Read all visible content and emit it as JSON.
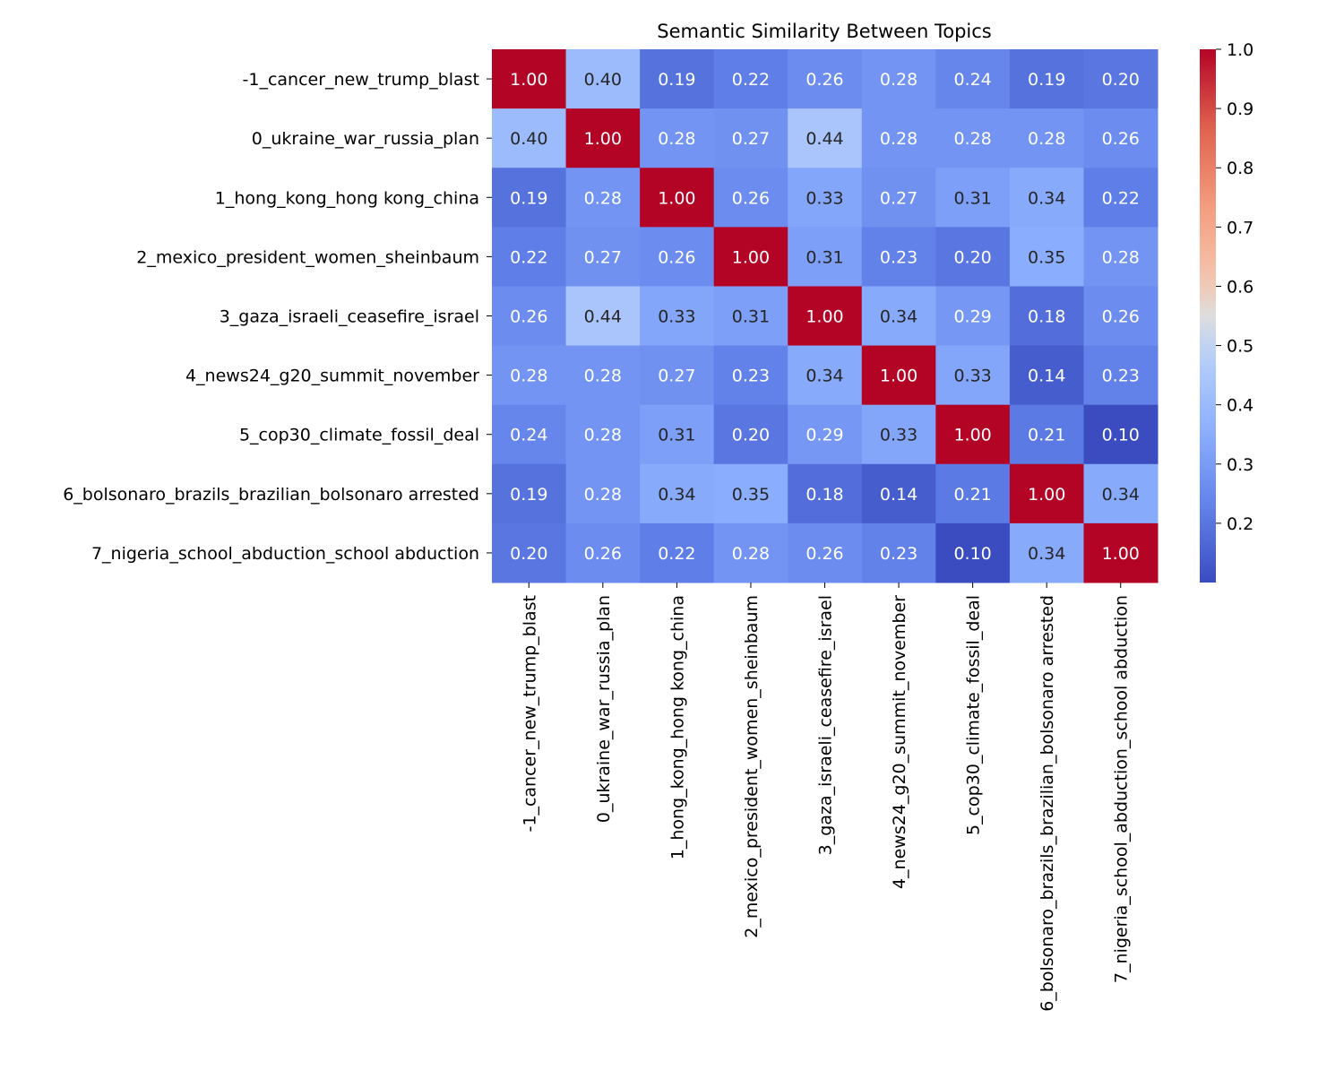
{
  "chart_data": {
    "type": "heatmap",
    "title": "Semantic Similarity Between Topics",
    "labels": [
      "-1_cancer_new_trump_blast",
      "0_ukraine_war_russia_plan",
      "1_hong_kong_hong kong_china",
      "2_mexico_president_women_sheinbaum",
      "3_gaza_israeli_ceasefire_israel",
      "4_news24_g20_summit_november",
      "5_cop30_climate_fossil_deal",
      "6_bolsonaro_brazils_brazilian_bolsonaro arrested",
      "7_nigeria_school_abduction_school abduction"
    ],
    "values": [
      [
        1.0,
        0.4,
        0.19,
        0.22,
        0.26,
        0.28,
        0.24,
        0.19,
        0.2
      ],
      [
        0.4,
        1.0,
        0.28,
        0.27,
        0.44,
        0.28,
        0.28,
        0.28,
        0.26
      ],
      [
        0.19,
        0.28,
        1.0,
        0.26,
        0.33,
        0.27,
        0.31,
        0.34,
        0.22
      ],
      [
        0.22,
        0.27,
        0.26,
        1.0,
        0.31,
        0.23,
        0.2,
        0.35,
        0.28
      ],
      [
        0.26,
        0.44,
        0.33,
        0.31,
        1.0,
        0.34,
        0.29,
        0.18,
        0.26
      ],
      [
        0.28,
        0.28,
        0.27,
        0.23,
        0.34,
        1.0,
        0.33,
        0.14,
        0.23
      ],
      [
        0.24,
        0.28,
        0.31,
        0.2,
        0.29,
        0.33,
        1.0,
        0.21,
        0.1
      ],
      [
        0.19,
        0.28,
        0.34,
        0.35,
        0.18,
        0.14,
        0.21,
        1.0,
        0.34
      ],
      [
        0.2,
        0.26,
        0.22,
        0.28,
        0.26,
        0.23,
        0.1,
        0.34,
        1.0
      ]
    ],
    "colormap": "coolwarm",
    "value_range": [
      0.1,
      1.0
    ],
    "colorbar_ticks": [
      "0.2",
      "0.3",
      "0.4",
      "0.5",
      "0.6",
      "0.7",
      "0.8",
      "0.9",
      "1.0"
    ],
    "annotation_format": "0.00"
  }
}
